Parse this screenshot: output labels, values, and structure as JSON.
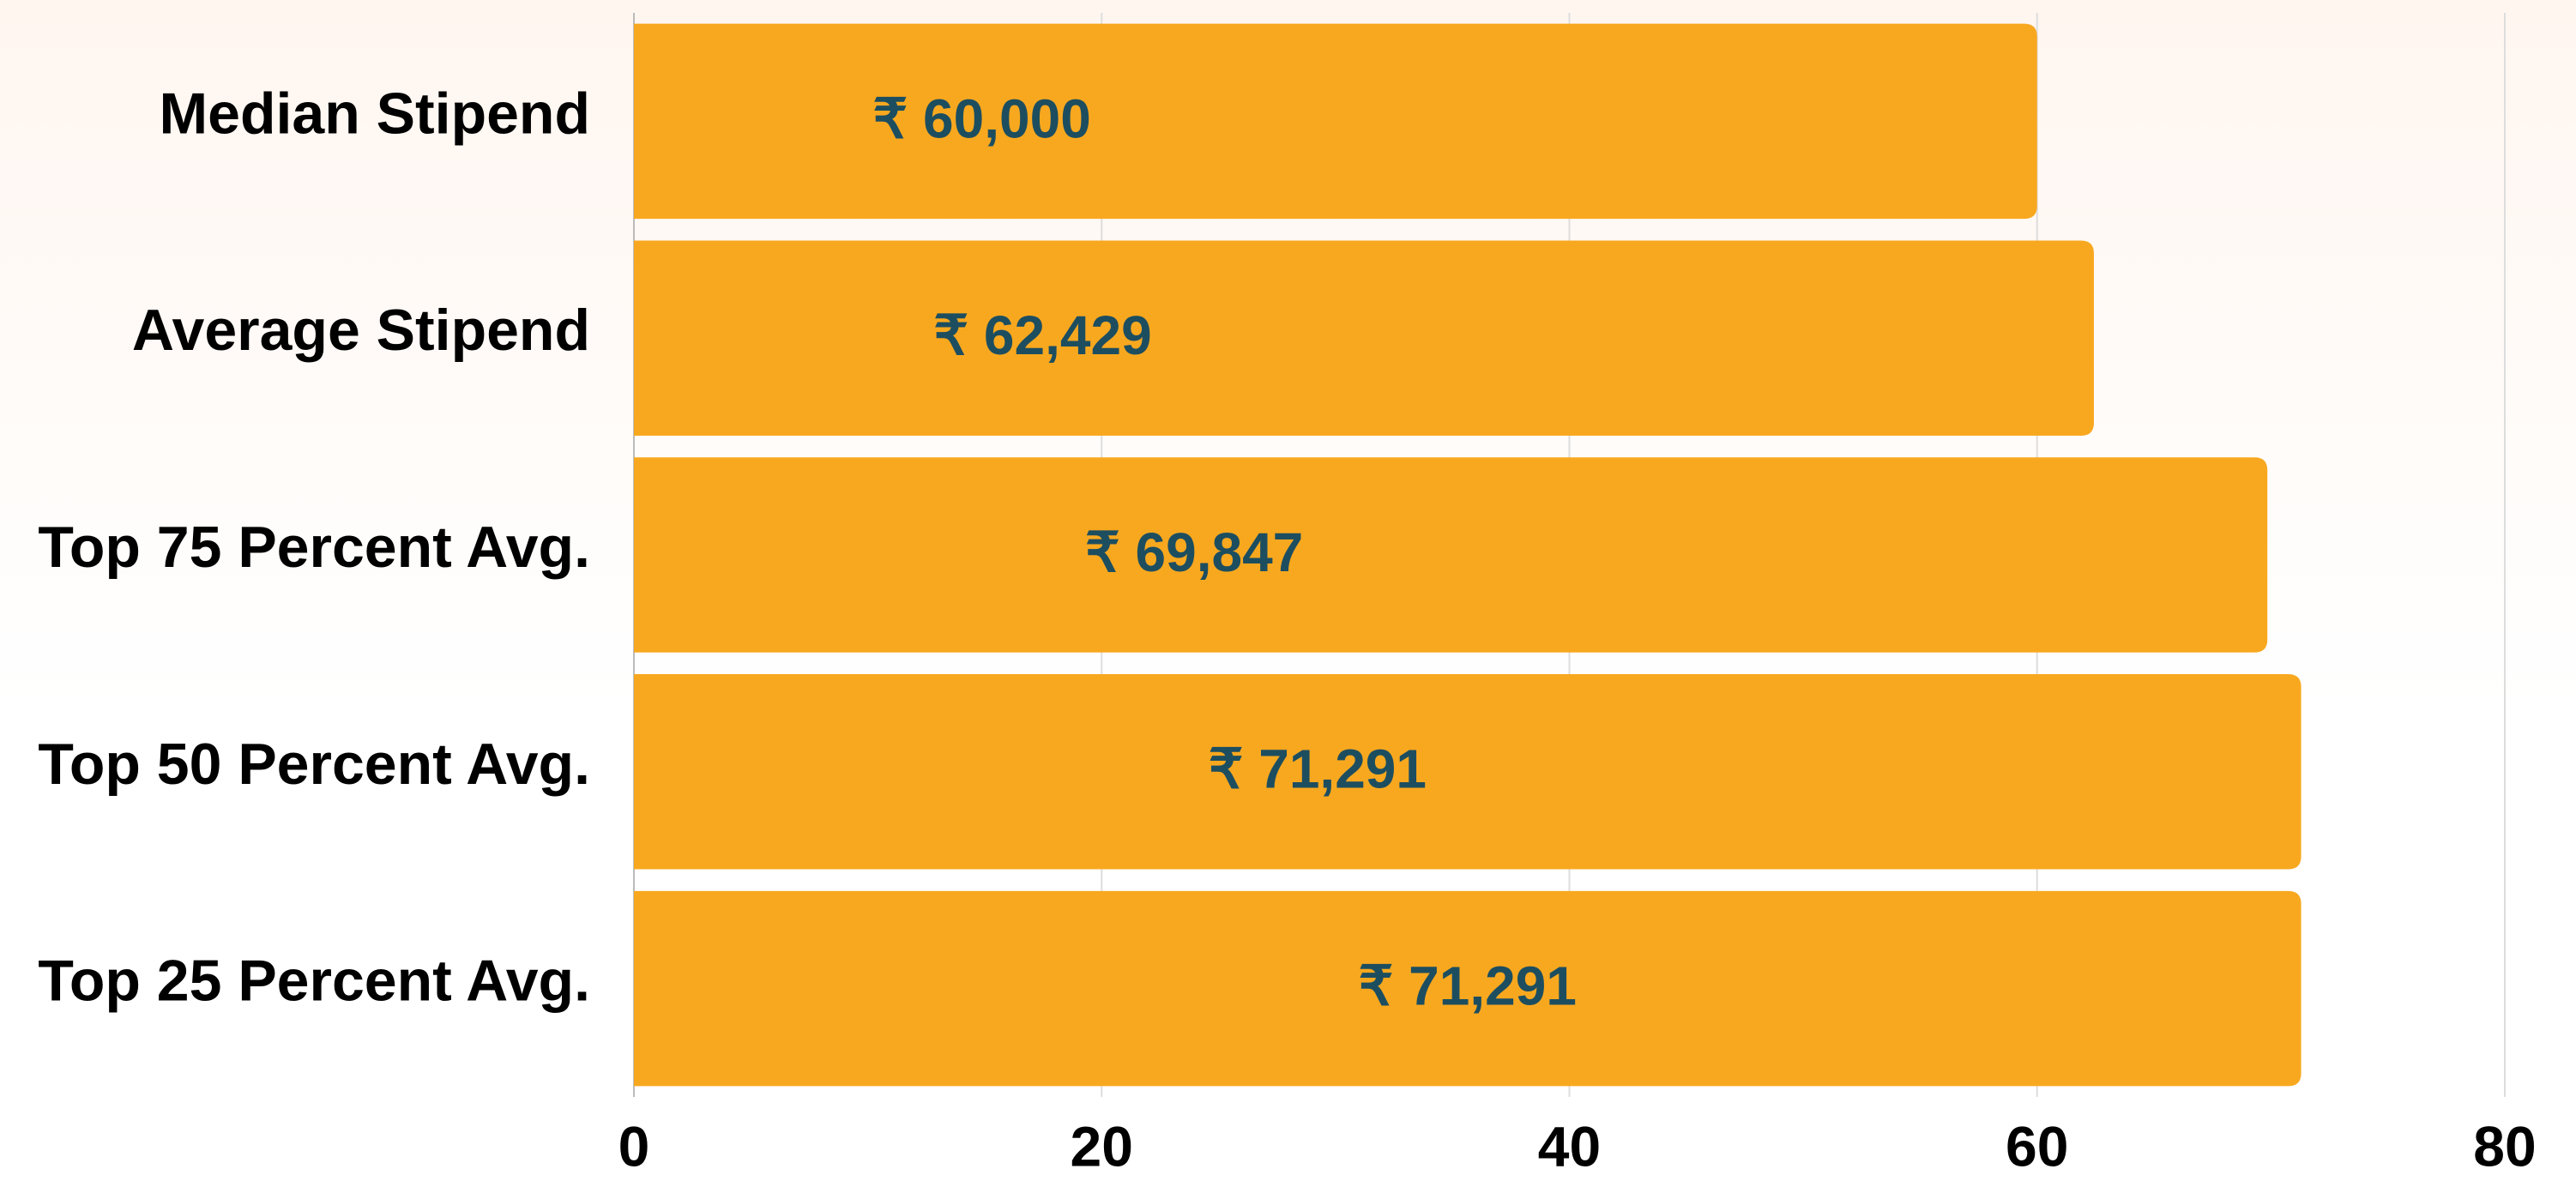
{
  "chart_data": {
    "type": "barh",
    "categories": [
      "Median Stipend",
      "Average Stipend",
      "Top 75 Percent Avg.",
      "Top 50 Percent Avg.",
      "Top 25 Percent Avg."
    ],
    "values": [
      60,
      62.429,
      69.847,
      71.291,
      71.291
    ],
    "value_labels": [
      "₹ 60,000",
      "₹ 62,429",
      "₹ 69,847",
      "₹ 71,291",
      "₹ 71,291"
    ],
    "color": "#f8a81f",
    "xlim": [
      0,
      80
    ],
    "xticks": [
      0,
      20,
      40,
      60,
      80
    ],
    "grid": true
  }
}
